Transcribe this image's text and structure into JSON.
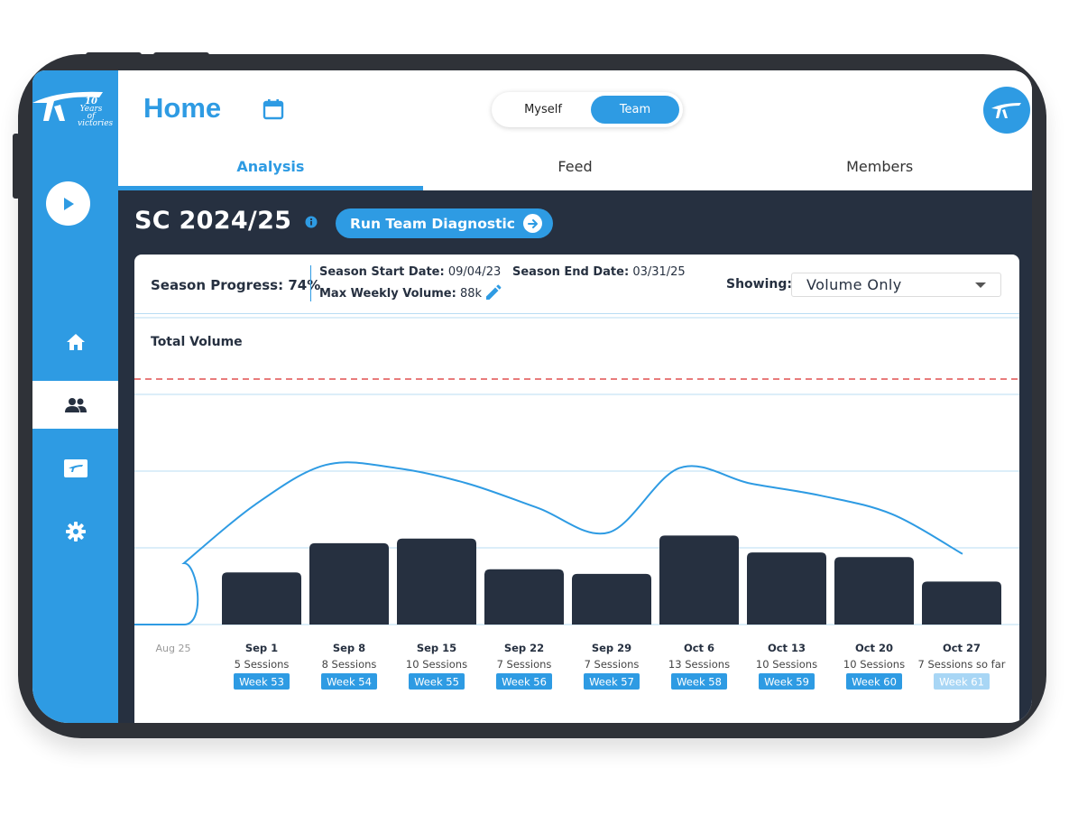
{
  "brand": {
    "logo_icon": "speed-logo-icon",
    "tagline_number": "10",
    "tagline_line1": "Years of",
    "tagline_line2": "victories"
  },
  "sidebar": {
    "play_icon": "play-icon",
    "items": [
      {
        "name": "home",
        "icon": "home-icon",
        "active": false
      },
      {
        "name": "team",
        "icon": "team-icon",
        "active": true
      },
      {
        "name": "brand",
        "icon": "logo-card-icon",
        "active": false
      },
      {
        "name": "settings",
        "icon": "gear-icon",
        "active": false
      }
    ]
  },
  "header": {
    "title": "Home",
    "calendar_icon": "calendar-icon",
    "toggle": {
      "options": [
        "Myself",
        "Team"
      ],
      "selected": "Team"
    },
    "tabs": [
      {
        "label": "Analysis",
        "active": true
      },
      {
        "label": "Feed",
        "active": false
      },
      {
        "label": "Members",
        "active": false
      }
    ]
  },
  "season": {
    "title": "SC 2024/25",
    "diagnostic_button": "Run Team Diagnostic",
    "progress_label": "Season Progress:",
    "progress_value": "74%",
    "start_label": "Season Start Date:",
    "start_value": "09/04/23",
    "end_label": "Season End Date:",
    "end_value": "03/31/25",
    "max_label": "Max Weekly Volume:",
    "max_value": "88k",
    "showing_label": "Showing:",
    "showing_value": "Volume Only"
  },
  "colors": {
    "accent": "#2e9be3",
    "dark": "#263040",
    "bar": "#263040",
    "line": "#2e9be3",
    "reference": "#e05050",
    "week_badge_future": "#a8d6f5"
  },
  "chart_data": {
    "type": "bar",
    "title": "Total Volume",
    "start_tick": "Aug 25",
    "categories": [
      "Sep 1",
      "Sep 8",
      "Sep 15",
      "Sep 22",
      "Sep 29",
      "Oct 6",
      "Oct 13",
      "Oct 20",
      "Oct 27"
    ],
    "sessions": [
      "5 Sessions",
      "8 Sessions",
      "10 Sessions",
      "7 Sessions",
      "7 Sessions",
      "13 Sessions",
      "10 Sessions",
      "10 Sessions",
      "7 Sessions so far"
    ],
    "weeks": [
      "Week 53",
      "Week 54",
      "Week 55",
      "Week 56",
      "Week 57",
      "Week 58",
      "Week 59",
      "Week 60",
      "Week 61"
    ],
    "values": [
      34,
      53,
      56,
      36,
      33,
      58,
      47,
      44,
      28
    ],
    "trend": [
      40,
      78,
      104,
      102,
      92,
      76,
      60,
      102,
      92,
      84,
      72,
      46
    ],
    "reference_value": 160,
    "ylim": [
      0,
      200
    ],
    "grid": true
  }
}
